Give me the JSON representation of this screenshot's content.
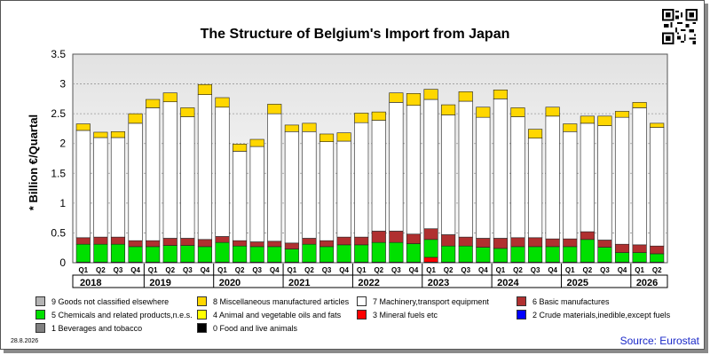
{
  "title": "The Structure of Belgium's Import from Japan",
  "date_stamp": "28.8.2026",
  "source": "Source: Eurostat",
  "chart_data": {
    "type": "bar",
    "stacked": true,
    "title": "The Structure of Belgium's Import from Japan",
    "xlabel": "",
    "ylabel": "* Billion €/Quartal",
    "ylim": [
      0,
      3.5
    ],
    "yticks": [
      "0",
      "0.5",
      "1",
      "1.5",
      "2",
      "2.5",
      "3",
      "3.5"
    ],
    "grid": true,
    "legend_position": "bottom",
    "categories": [
      "Q1",
      "Q2",
      "Q3",
      "Q4",
      "Q1",
      "Q2",
      "Q3",
      "Q4",
      "Q1",
      "Q2",
      "Q3",
      "Q4",
      "Q1",
      "Q2",
      "Q3",
      "Q4",
      "Q1",
      "Q2",
      "Q3",
      "Q4",
      "Q1",
      "Q2",
      "Q3",
      "Q4",
      "Q1",
      "Q2",
      "Q3",
      "Q4",
      "Q1",
      "Q2",
      "Q3",
      "Q4",
      "Q1",
      "Q2"
    ],
    "years": [
      {
        "label": "2018",
        "quarters": 4
      },
      {
        "label": "2019",
        "quarters": 4
      },
      {
        "label": "2020",
        "quarters": 4
      },
      {
        "label": "2021",
        "quarters": 4
      },
      {
        "label": "2022",
        "quarters": 4
      },
      {
        "label": "2023",
        "quarters": 4
      },
      {
        "label": "2024",
        "quarters": 4
      },
      {
        "label": "2025",
        "quarters": 4
      },
      {
        "label": "2026",
        "quarters": 2
      }
    ],
    "series": [
      {
        "name": "0 Food and live animals",
        "color": "#000000",
        "values": [
          0.01,
          0.01,
          0.01,
          0.01,
          0.01,
          0.01,
          0.01,
          0.01,
          0.01,
          0.01,
          0.01,
          0.01,
          0.01,
          0.01,
          0.01,
          0.01,
          0.01,
          0.01,
          0.01,
          0.01,
          0.01,
          0.01,
          0.01,
          0.01,
          0.01,
          0.01,
          0.01,
          0.01,
          0.01,
          0.01,
          0.01,
          0.01,
          0.01,
          0.01
        ]
      },
      {
        "name": "3 Mineral fuels etc",
        "color": "#ff0000",
        "values": [
          0,
          0,
          0,
          0,
          0,
          0,
          0,
          0,
          0,
          0,
          0,
          0,
          0,
          0,
          0,
          0,
          0,
          0,
          0,
          0,
          0.08,
          0,
          0,
          0,
          0,
          0,
          0,
          0,
          0,
          0,
          0,
          0,
          0,
          0
        ]
      },
      {
        "name": "5 Chemicals and related products,n.e.s.",
        "color": "#00e000",
        "values": [
          0.3,
          0.3,
          0.3,
          0.26,
          0.26,
          0.28,
          0.28,
          0.26,
          0.33,
          0.27,
          0.26,
          0.26,
          0.22,
          0.3,
          0.26,
          0.29,
          0.29,
          0.33,
          0.33,
          0.31,
          0.3,
          0.27,
          0.27,
          0.25,
          0.23,
          0.26,
          0.26,
          0.26,
          0.26,
          0.38,
          0.25,
          0.16,
          0.16,
          0.14
        ]
      },
      {
        "name": "6 Basic manufactures",
        "color": "#b03030",
        "values": [
          0.11,
          0.12,
          0.12,
          0.1,
          0.1,
          0.12,
          0.12,
          0.12,
          0.1,
          0.09,
          0.08,
          0.09,
          0.1,
          0.1,
          0.1,
          0.13,
          0.13,
          0.19,
          0.19,
          0.16,
          0.18,
          0.19,
          0.15,
          0.15,
          0.17,
          0.15,
          0.15,
          0.13,
          0.13,
          0.13,
          0.12,
          0.14,
          0.13,
          0.13
        ]
      },
      {
        "name": "7 Machinery,transport equipment",
        "color": "#ffffff",
        "values": [
          1.8,
          1.67,
          1.67,
          1.97,
          2.23,
          2.29,
          2.04,
          2.43,
          2.17,
          1.5,
          1.6,
          2.14,
          1.87,
          1.79,
          1.66,
          1.61,
          1.92,
          1.86,
          2.16,
          2.16,
          2.17,
          2.01,
          2.28,
          2.03,
          2.34,
          2.03,
          1.67,
          2.06,
          1.8,
          1.82,
          1.92,
          2.13,
          2.3,
          1.99
        ]
      },
      {
        "name": "8 Miscellaneous manufactured articles",
        "color": "#ffd700",
        "values": [
          0.11,
          0.09,
          0.1,
          0.16,
          0.14,
          0.15,
          0.15,
          0.17,
          0.16,
          0.12,
          0.12,
          0.16,
          0.11,
          0.14,
          0.13,
          0.14,
          0.16,
          0.14,
          0.16,
          0.2,
          0.17,
          0.17,
          0.16,
          0.17,
          0.15,
          0.15,
          0.15,
          0.15,
          0.13,
          0.12,
          0.16,
          0.1,
          0.09,
          0.07
        ]
      }
    ],
    "legend": [
      {
        "name": "9 Goods not classified elsewhere",
        "color": "#b4b4b4"
      },
      {
        "name": "8 Miscellaneous manufactured articles",
        "color": "#ffd700"
      },
      {
        "name": "7 Machinery,transport equipment",
        "color": "#ffffff"
      },
      {
        "name": "6 Basic manufactures",
        "color": "#b03030"
      },
      {
        "name": "5 Chemicals and related products,n.e.s.",
        "color": "#00e000"
      },
      {
        "name": "4 Animal and vegetable oils and fats",
        "color": "#ffff00"
      },
      {
        "name": "3 Mineral fuels etc",
        "color": "#ff0000"
      },
      {
        "name": "2 Crude materials,inedible,except fuels",
        "color": "#0000ff"
      },
      {
        "name": "1 Beverages and tobacco",
        "color": "#808080"
      },
      {
        "name": "0 Food and live animals",
        "color": "#000000"
      }
    ]
  }
}
